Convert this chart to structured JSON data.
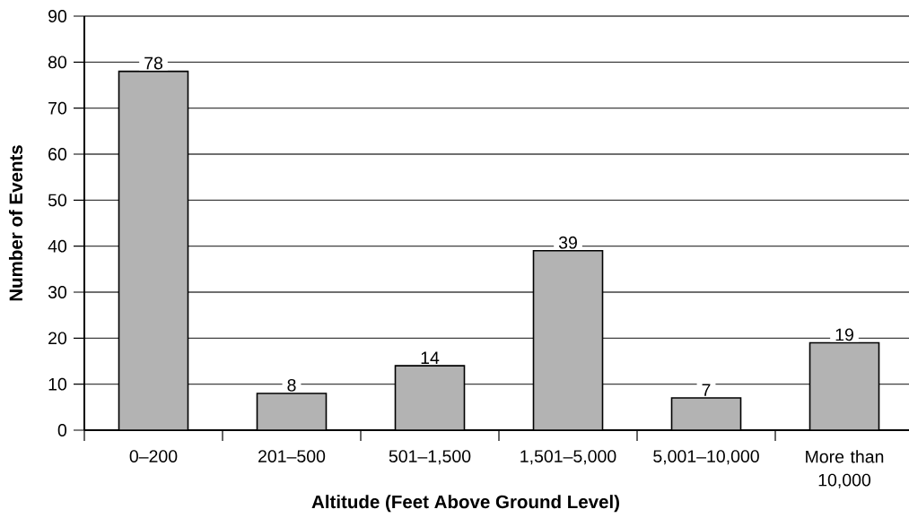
{
  "chart_data": {
    "type": "bar",
    "xlabel": "Altitude (Feet Above Ground Level)",
    "ylabel": "Number of Events",
    "categories": [
      "0–200",
      "201–500",
      "501–1,500",
      "1,501–5,000",
      "5,001–10,000",
      "More than 10,000"
    ],
    "values": [
      78,
      8,
      14,
      39,
      7,
      19
    ],
    "color": "#b3b3b3",
    "ylim": [
      0,
      90
    ],
    "yticks": [
      0,
      10,
      20,
      30,
      40,
      50,
      60,
      70,
      80,
      90
    ],
    "grid": "y",
    "data_labels": true
  }
}
